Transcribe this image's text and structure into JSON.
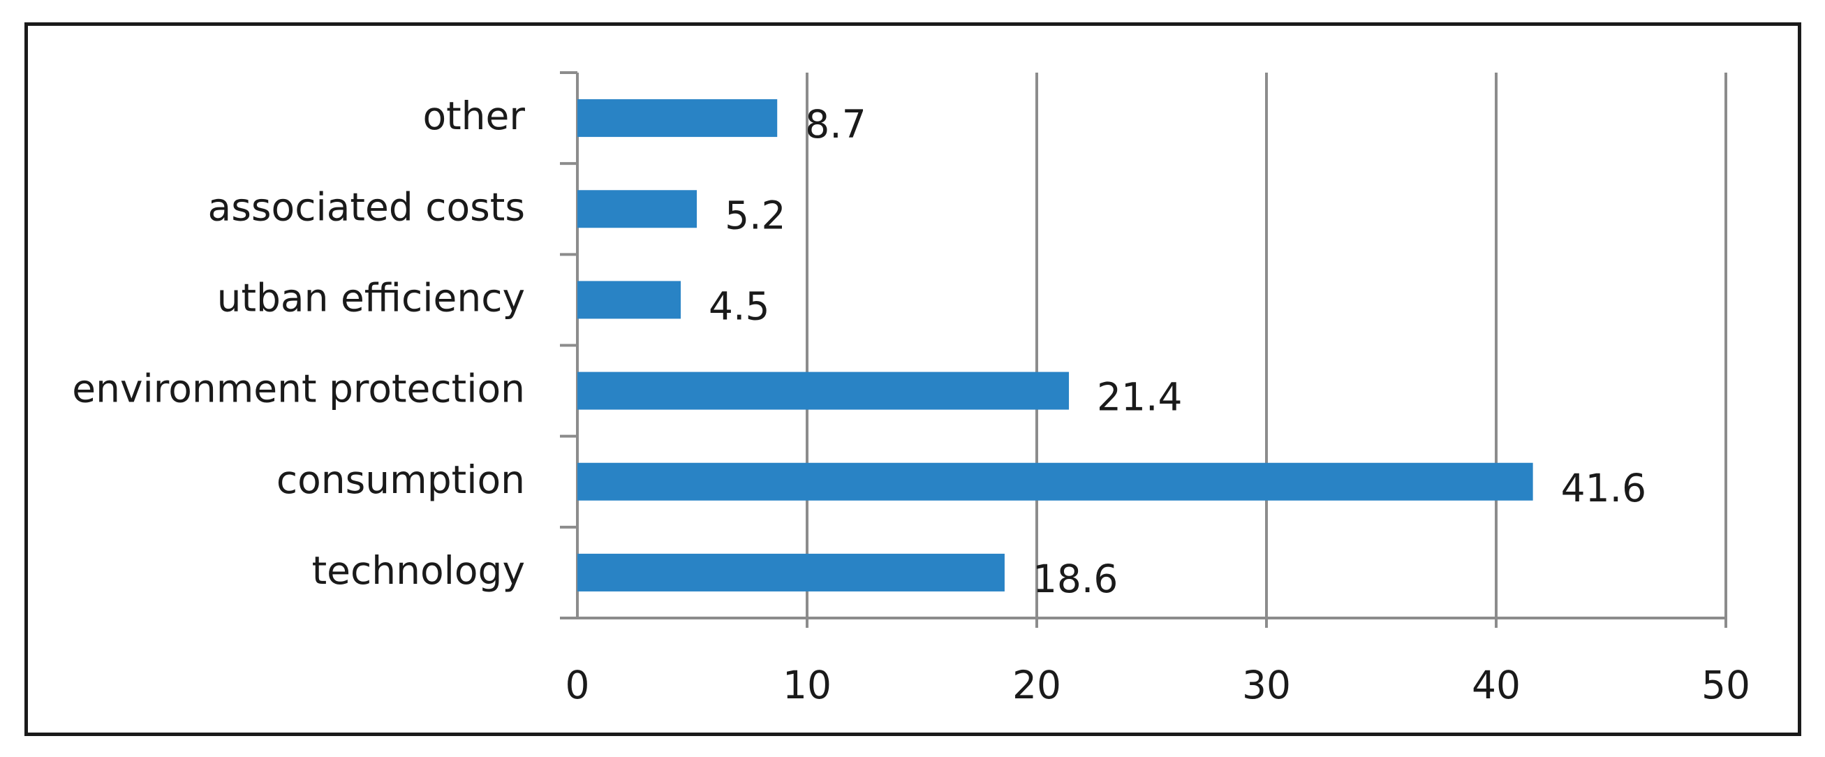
{
  "chart_data": {
    "type": "bar",
    "orientation": "horizontal",
    "categories": [
      "technology",
      "consumption",
      "environment protection",
      "utban efficiency",
      "associated costs",
      "other"
    ],
    "values": [
      18.6,
      41.6,
      21.4,
      4.5,
      5.2,
      8.7
    ],
    "data_labels": [
      "18.6",
      "41.6",
      "21.4",
      "4.5",
      "5.2",
      "8.7"
    ],
    "title": "",
    "xlabel": "",
    "ylabel": "",
    "xlim": [
      0,
      50
    ],
    "x_ticks": [
      0,
      10,
      20,
      30,
      40,
      50
    ],
    "x_tick_labels": [
      "0",
      "10",
      "20",
      "30",
      "40",
      "50"
    ],
    "grid": "vertical major gridlines",
    "legend": "none",
    "bar_color": "#2983C5",
    "grid_color": "#8c8c8c"
  }
}
